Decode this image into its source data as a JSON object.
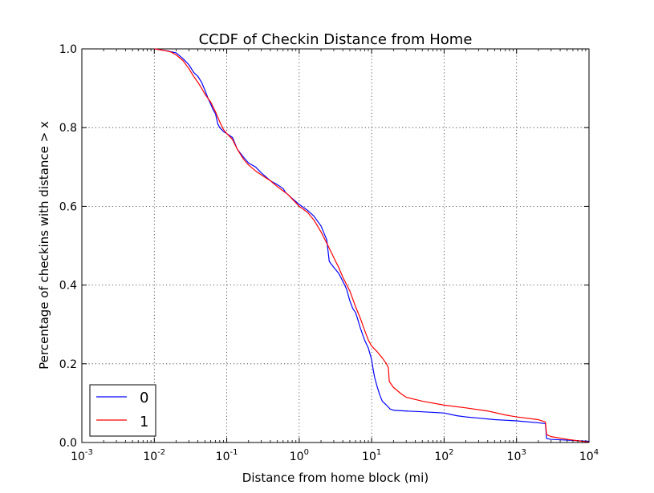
{
  "chart_data": {
    "type": "line",
    "title": "CCDF of Checkin Distance from Home",
    "xlabel": "Distance from home block (mi)",
    "ylabel": "Percentage of checkins with distance > x",
    "xscale": "log",
    "xlim": [
      0.001,
      10000
    ],
    "ylim": [
      0.0,
      1.0
    ],
    "x_ticks": [
      {
        "base": "10",
        "exp": "-3",
        "value": 0.001
      },
      {
        "base": "10",
        "exp": "-2",
        "value": 0.01
      },
      {
        "base": "10",
        "exp": "-1",
        "value": 0.1
      },
      {
        "base": "10",
        "exp": "0",
        "value": 1
      },
      {
        "base": "10",
        "exp": "1",
        "value": 10
      },
      {
        "base": "10",
        "exp": "2",
        "value": 100
      },
      {
        "base": "10",
        "exp": "3",
        "value": 1000
      },
      {
        "base": "10",
        "exp": "4",
        "value": 10000
      }
    ],
    "y_ticks": [
      "0.0",
      "0.2",
      "0.4",
      "0.6",
      "0.8",
      "1.0"
    ],
    "grid": true,
    "legend_position": "lower-left",
    "series": [
      {
        "name": "0",
        "color": "#0000ff",
        "points": [
          [
            0.01,
            1.0
          ],
          [
            0.015,
            0.995
          ],
          [
            0.02,
            0.99
          ],
          [
            0.025,
            0.975
          ],
          [
            0.03,
            0.96
          ],
          [
            0.035,
            0.94
          ],
          [
            0.04,
            0.93
          ],
          [
            0.045,
            0.915
          ],
          [
            0.05,
            0.895
          ],
          [
            0.055,
            0.875
          ],
          [
            0.06,
            0.86
          ],
          [
            0.065,
            0.845
          ],
          [
            0.07,
            0.835
          ],
          [
            0.075,
            0.81
          ],
          [
            0.08,
            0.8
          ],
          [
            0.09,
            0.79
          ],
          [
            0.1,
            0.785
          ],
          [
            0.12,
            0.775
          ],
          [
            0.14,
            0.745
          ],
          [
            0.17,
            0.725
          ],
          [
            0.2,
            0.71
          ],
          [
            0.25,
            0.7
          ],
          [
            0.3,
            0.685
          ],
          [
            0.4,
            0.665
          ],
          [
            0.5,
            0.655
          ],
          [
            0.6,
            0.645
          ],
          [
            0.65,
            0.635
          ],
          [
            0.8,
            0.62
          ],
          [
            1.0,
            0.605
          ],
          [
            1.3,
            0.59
          ],
          [
            1.6,
            0.575
          ],
          [
            2.0,
            0.55
          ],
          [
            2.4,
            0.515
          ],
          [
            2.6,
            0.46
          ],
          [
            3.0,
            0.445
          ],
          [
            3.5,
            0.43
          ],
          [
            4.0,
            0.41
          ],
          [
            4.5,
            0.39
          ],
          [
            5.0,
            0.36
          ],
          [
            5.5,
            0.34
          ],
          [
            6.0,
            0.33
          ],
          [
            6.5,
            0.31
          ],
          [
            7.0,
            0.29
          ],
          [
            8.0,
            0.26
          ],
          [
            9.0,
            0.24
          ],
          [
            10.0,
            0.21
          ],
          [
            10.5,
            0.185
          ],
          [
            11.0,
            0.165
          ],
          [
            12.0,
            0.14
          ],
          [
            13.0,
            0.12
          ],
          [
            14.0,
            0.105
          ],
          [
            16.0,
            0.095
          ],
          [
            18.0,
            0.085
          ],
          [
            20.0,
            0.082
          ],
          [
            30.0,
            0.08
          ],
          [
            50.0,
            0.078
          ],
          [
            100.0,
            0.075
          ],
          [
            150.0,
            0.068
          ],
          [
            200.0,
            0.065
          ],
          [
            300.0,
            0.062
          ],
          [
            500.0,
            0.058
          ],
          [
            1000.0,
            0.055
          ],
          [
            2000.0,
            0.05
          ],
          [
            2500.0,
            0.048
          ],
          [
            2600.0,
            0.01
          ],
          [
            3000.0,
            0.008
          ],
          [
            5000.0,
            0.006
          ],
          [
            8000.0,
            0.004
          ],
          [
            10000.0,
            0.003
          ]
        ]
      },
      {
        "name": "1",
        "color": "#ff0000",
        "points": [
          [
            0.01,
            1.0
          ],
          [
            0.013,
            0.997
          ],
          [
            0.017,
            0.992
          ],
          [
            0.02,
            0.985
          ],
          [
            0.025,
            0.97
          ],
          [
            0.03,
            0.95
          ],
          [
            0.035,
            0.93
          ],
          [
            0.04,
            0.915
          ],
          [
            0.045,
            0.9
          ],
          [
            0.05,
            0.885
          ],
          [
            0.06,
            0.865
          ],
          [
            0.07,
            0.84
          ],
          [
            0.08,
            0.815
          ],
          [
            0.09,
            0.795
          ],
          [
            0.1,
            0.785
          ],
          [
            0.12,
            0.77
          ],
          [
            0.14,
            0.745
          ],
          [
            0.17,
            0.72
          ],
          [
            0.2,
            0.705
          ],
          [
            0.25,
            0.69
          ],
          [
            0.3,
            0.68
          ],
          [
            0.4,
            0.665
          ],
          [
            0.5,
            0.65
          ],
          [
            0.7,
            0.63
          ],
          [
            1.0,
            0.6
          ],
          [
            1.3,
            0.585
          ],
          [
            1.6,
            0.565
          ],
          [
            2.0,
            0.535
          ],
          [
            2.5,
            0.5
          ],
          [
            3.0,
            0.47
          ],
          [
            3.5,
            0.445
          ],
          [
            4.0,
            0.42
          ],
          [
            5.0,
            0.385
          ],
          [
            6.0,
            0.345
          ],
          [
            7.0,
            0.315
          ],
          [
            8.0,
            0.285
          ],
          [
            9.0,
            0.26
          ],
          [
            10.0,
            0.245
          ],
          [
            12.0,
            0.23
          ],
          [
            14.0,
            0.215
          ],
          [
            16.0,
            0.2
          ],
          [
            17.0,
            0.19
          ],
          [
            17.5,
            0.155
          ],
          [
            20.0,
            0.14
          ],
          [
            25.0,
            0.125
          ],
          [
            30.0,
            0.115
          ],
          [
            50.0,
            0.105
          ],
          [
            100.0,
            0.095
          ],
          [
            200.0,
            0.088
          ],
          [
            400.0,
            0.08
          ],
          [
            700.0,
            0.07
          ],
          [
            1000.0,
            0.065
          ],
          [
            2000.0,
            0.058
          ],
          [
            2500.0,
            0.052
          ],
          [
            2600.0,
            0.02
          ],
          [
            3000.0,
            0.015
          ],
          [
            5000.0,
            0.008
          ],
          [
            8000.0,
            0.003
          ],
          [
            10000.0,
            0.001
          ]
        ]
      }
    ]
  }
}
